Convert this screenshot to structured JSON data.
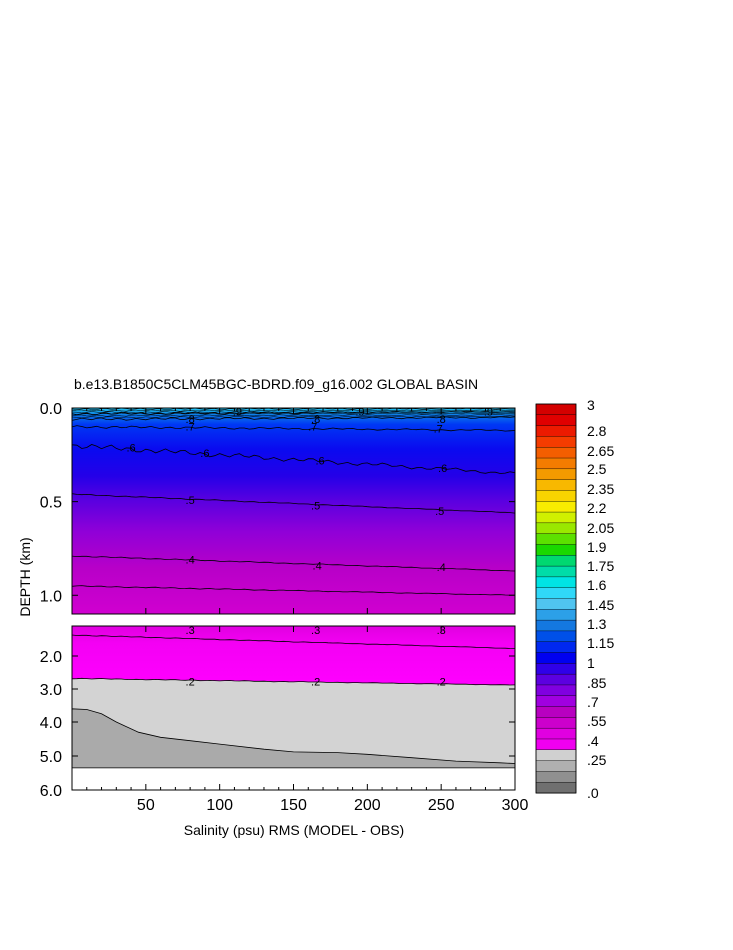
{
  "chart_data": {
    "type": "contour",
    "title": "b.e13.B1850C5CLM45BGC-BDRD.f09_g16.002 GLOBAL BASIN",
    "xlabel": "Salinity (psu) RMS (MODEL - OBS)",
    "ylabel": "DEPTH (km)",
    "xlim": [
      0,
      300
    ],
    "x_ticks": [
      "50",
      "100",
      "150",
      "200",
      "250",
      "300"
    ],
    "upper_panel": {
      "ylim": [
        0.0,
        1.1
      ],
      "y_ticks": [
        "0.0",
        "0.5",
        "1.0"
      ]
    },
    "lower_panel": {
      "ylim": [
        1.0,
        6.0
      ],
      "y_ticks": [
        "2.0",
        "3.0",
        "4.0",
        "5.0",
        "6.0"
      ]
    },
    "contour_labels_upper": [
      {
        "text": ".9",
        "x": 112,
        "depth": 0.02
      },
      {
        "text": ".9",
        "x": 195,
        "depth": 0.02
      },
      {
        "text": ".9",
        "x": 282,
        "depth": 0.02
      },
      {
        "text": ".8",
        "x": 80,
        "depth": 0.06
      },
      {
        "text": ".8",
        "x": 165,
        "depth": 0.06
      },
      {
        "text": ".8",
        "x": 250,
        "depth": 0.06
      },
      {
        "text": ".7",
        "x": 80,
        "depth": 0.1
      },
      {
        "text": ".7",
        "x": 163,
        "depth": 0.1
      },
      {
        "text": ".7",
        "x": 248,
        "depth": 0.11
      },
      {
        "text": ".6",
        "x": 40,
        "depth": 0.21
      },
      {
        "text": ".6",
        "x": 90,
        "depth": 0.24
      },
      {
        "text": ".6",
        "x": 168,
        "depth": 0.28
      },
      {
        "text": ".6",
        "x": 251,
        "depth": 0.32
      },
      {
        "text": ".5",
        "x": 80,
        "depth": 0.49
      },
      {
        "text": ".5",
        "x": 165,
        "depth": 0.52
      },
      {
        "text": ".5",
        "x": 249,
        "depth": 0.55
      },
      {
        "text": ".4",
        "x": 80,
        "depth": 0.81
      },
      {
        "text": ".4",
        "x": 166,
        "depth": 0.84
      },
      {
        "text": ".4",
        "x": 250,
        "depth": 0.85
      }
    ],
    "contour_labels_lower": [
      {
        "text": ".3",
        "x": 80,
        "depth": 1.0
      },
      {
        "text": ".3",
        "x": 165,
        "depth": 1.0
      },
      {
        "text": ".3",
        "x": 250,
        "depth": 1.0
      },
      {
        "text": ".2",
        "x": 80,
        "depth": 2.65
      },
      {
        "text": ".2",
        "x": 165,
        "depth": 2.65
      },
      {
        "text": ".2",
        "x": 250,
        "depth": 2.65
      }
    ],
    "contour_lines_upper": [
      {
        "level": 0.9,
        "depth_left": 0.03,
        "depth_right": 0.02
      },
      {
        "level": 0.8,
        "depth_left": 0.06,
        "depth_right": 0.05
      },
      {
        "level": 0.7,
        "depth_left": 0.1,
        "depth_right": 0.12
      },
      {
        "level": 0.6,
        "depth_left": 0.2,
        "depth_right": 0.35
      },
      {
        "level": 0.5,
        "depth_left": 0.46,
        "depth_right": 0.56
      },
      {
        "level": 0.4,
        "depth_left": 0.79,
        "depth_right": 0.87
      },
      {
        "level": 0.35,
        "depth_left": 0.95,
        "depth_right": 1.0
      }
    ],
    "contour_lines_lower": [
      {
        "level": 0.3,
        "depth_left": 1.3,
        "depth_right": 1.75
      },
      {
        "level": 0.2,
        "depth_left": 2.68,
        "depth_right": 2.88
      }
    ],
    "bathymetry": {
      "x": [
        0,
        10,
        20,
        30,
        45,
        60,
        80,
        100,
        130,
        150,
        180,
        200,
        230,
        260,
        290,
        300
      ],
      "depth": [
        3.6,
        3.62,
        3.75,
        4.0,
        4.3,
        4.45,
        4.55,
        4.65,
        4.8,
        4.88,
        4.9,
        4.95,
        5.05,
        5.15,
        5.2,
        5.22
      ]
    },
    "data_floor_depth": 5.35,
    "colorbar": {
      "labels": [
        "3",
        "2.8",
        "2.65",
        "2.5",
        "2.35",
        "2.2",
        "2.05",
        "1.9",
        "1.75",
        "1.6",
        "1.45",
        "1.3",
        "1.15",
        "1",
        ".85",
        ".7",
        ".55",
        ".4",
        ".25",
        ".0"
      ],
      "colors": [
        "#d40000",
        "#e00000",
        "#ec1a00",
        "#f43c00",
        "#f45e00",
        "#f47c00",
        "#f49a00",
        "#f8b800",
        "#f8d400",
        "#f8ec00",
        "#d0f000",
        "#9ae800",
        "#5ce000",
        "#1ad800",
        "#00d870",
        "#00dca8",
        "#00e4e4",
        "#30d8f8",
        "#50c4f0",
        "#2ca0e8",
        "#1478e0",
        "#0050e8",
        "#0028f0",
        "#0000f0",
        "#3000e8",
        "#5c00e0",
        "#8000e0",
        "#a000e0",
        "#b800c0",
        "#cc00cc",
        "#e000e0",
        "#f000f0",
        "#d0d0d0",
        "#b0b0b0",
        "#909090",
        "#707070"
      ]
    }
  }
}
